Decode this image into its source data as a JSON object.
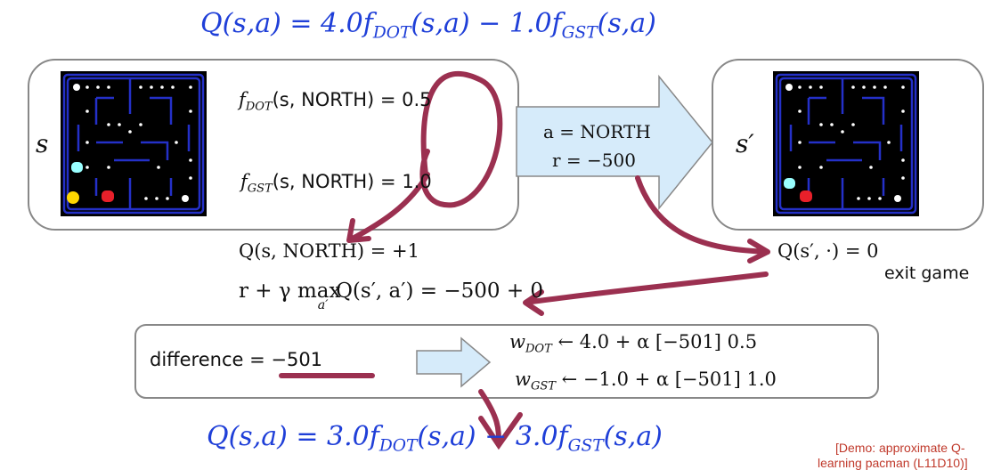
{
  "top_formula": [
    "Q(s,a) = 4.0f",
    "DOT",
    "(s,a) − 1.0f",
    "GST",
    "(s,a)"
  ],
  "state_box": {
    "label": "s",
    "f_dot": [
      "f",
      "DOT",
      "(s, NORTH) = 0.5"
    ],
    "f_gst": [
      "f",
      "GST",
      "(s, NORTH) = 1.0"
    ]
  },
  "action": {
    "a": "a = NORTH",
    "r": "r = −500"
  },
  "next_state": {
    "label": "s′",
    "q": "Q(s′, ·) = 0",
    "note": "exit game"
  },
  "q_value": "Q(s, NORTH) = +1",
  "target": [
    "r + γ max",
    "a′",
    "Q(s′, a′) = −500 + 0"
  ],
  "difference": "difference = −501",
  "updates": [
    [
      "w",
      "DOT",
      " ← 4.0 + α [−501] 0.5"
    ],
    [
      "w",
      "GST",
      " ← −1.0 + α [−501] 1.0"
    ]
  ],
  "bottom_formula": [
    "Q(s,a) = 3.0f",
    "DOT",
    "(s,a) − 3.0f",
    "GST",
    "(s,a)"
  ],
  "demo_note": [
    "[Demo: approximate Q-",
    "learning pacman (L11D10)]"
  ]
}
